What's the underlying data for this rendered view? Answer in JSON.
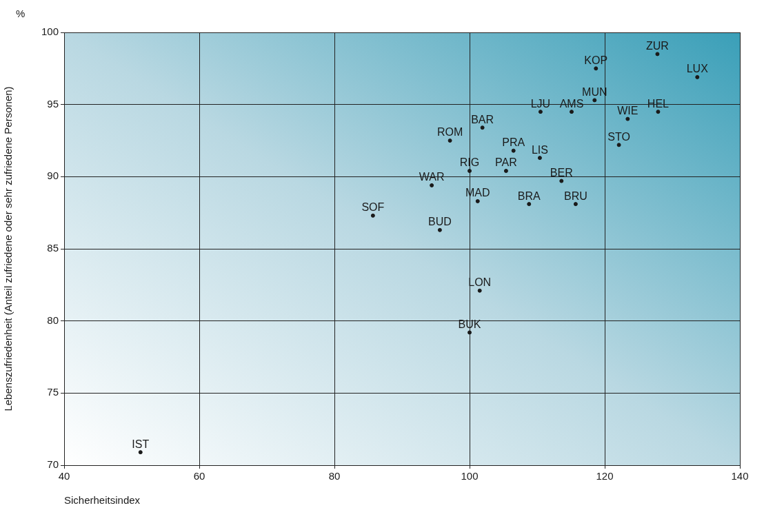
{
  "chart_data": {
    "type": "scatter",
    "xlabel": "Sicherheitsindex",
    "ylabel": "Lebenszufriedenheit (Anteil zufriedene oder sehr zufriedene Personen)",
    "annotations": [
      "%"
    ],
    "xlim": [
      40,
      140
    ],
    "ylim": [
      70,
      100
    ],
    "xticks": [
      40,
      60,
      80,
      100,
      120,
      140
    ],
    "yticks": [
      70,
      75,
      80,
      85,
      90,
      95,
      100
    ],
    "grid": true,
    "legend": false,
    "marker": "circle",
    "series": [
      {
        "name": "ZUR",
        "color": "#1a1a1a",
        "x": [
          127.8
        ],
        "values": [
          98.5
        ]
      },
      {
        "name": "LUX",
        "color": "#1a1a1a",
        "x": [
          133.7
        ],
        "values": [
          96.9
        ]
      },
      {
        "name": "KOP",
        "color": "#1a1a1a",
        "x": [
          118.7
        ],
        "values": [
          97.5
        ]
      },
      {
        "name": "MUN",
        "color": "#1a1a1a",
        "x": [
          118.5
        ],
        "values": [
          95.3
        ]
      },
      {
        "name": "HEL",
        "color": "#1a1a1a",
        "x": [
          127.9
        ],
        "values": [
          94.5
        ]
      },
      {
        "name": "AMS",
        "color": "#1a1a1a",
        "x": [
          115.1
        ],
        "values": [
          94.5
        ]
      },
      {
        "name": "LJU",
        "color": "#1a1a1a",
        "x": [
          110.5
        ],
        "values": [
          94.5
        ]
      },
      {
        "name": "WIE",
        "color": "#1a1a1a",
        "x": [
          123.4
        ],
        "values": [
          94.0
        ]
      },
      {
        "name": "BAR",
        "color": "#1a1a1a",
        "x": [
          101.9
        ],
        "values": [
          93.4
        ]
      },
      {
        "name": "STO",
        "color": "#1a1a1a",
        "x": [
          122.1
        ],
        "values": [
          92.2
        ]
      },
      {
        "name": "ROM",
        "color": "#1a1a1a",
        "x": [
          97.1
        ],
        "values": [
          92.5
        ]
      },
      {
        "name": "PRA",
        "color": "#1a1a1a",
        "x": [
          106.5
        ],
        "values": [
          91.8
        ]
      },
      {
        "name": "LIS",
        "color": "#1a1a1a",
        "x": [
          110.4
        ],
        "values": [
          91.3
        ]
      },
      {
        "name": "RIG",
        "color": "#1a1a1a",
        "x": [
          100.0
        ],
        "values": [
          90.4
        ]
      },
      {
        "name": "PAR",
        "color": "#1a1a1a",
        "x": [
          105.4
        ],
        "values": [
          90.4
        ]
      },
      {
        "name": "BER",
        "color": "#1a1a1a",
        "x": [
          113.6
        ],
        "values": [
          89.7
        ]
      },
      {
        "name": "WAR",
        "color": "#1a1a1a",
        "x": [
          94.4
        ],
        "values": [
          89.4
        ]
      },
      {
        "name": "MAD",
        "color": "#1a1a1a",
        "x": [
          101.2
        ],
        "values": [
          88.3
        ]
      },
      {
        "name": "BRA",
        "color": "#1a1a1a",
        "x": [
          108.8
        ],
        "values": [
          88.1
        ]
      },
      {
        "name": "BRU",
        "color": "#1a1a1a",
        "x": [
          115.7
        ],
        "values": [
          88.1
        ]
      },
      {
        "name": "SOF",
        "color": "#1a1a1a",
        "x": [
          85.7
        ],
        "values": [
          87.3
        ]
      },
      {
        "name": "BUD",
        "color": "#1a1a1a",
        "x": [
          95.6
        ],
        "values": [
          86.3
        ]
      },
      {
        "name": "LON",
        "color": "#1a1a1a",
        "x": [
          101.5
        ],
        "values": [
          82.1
        ]
      },
      {
        "name": "BUK",
        "color": "#1a1a1a",
        "x": [
          100.0
        ],
        "values": [
          79.2
        ]
      },
      {
        "name": "IST",
        "color": "#1a1a1a",
        "x": [
          51.3
        ],
        "values": [
          70.9
        ]
      }
    ]
  }
}
